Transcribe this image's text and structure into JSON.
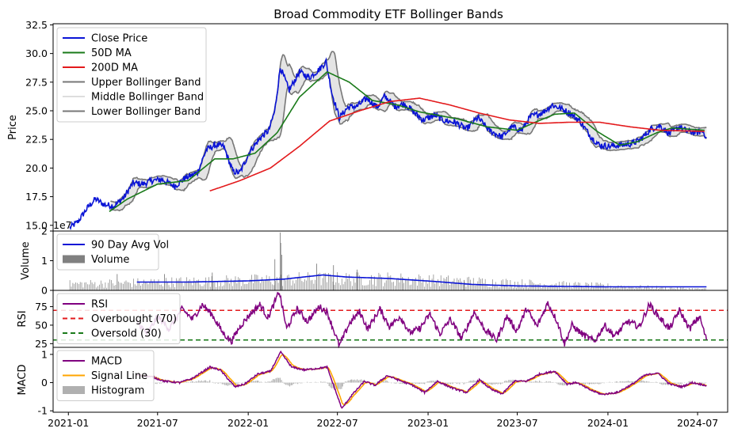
{
  "chart_data": {
    "type": "line",
    "title": "Broad Commodity ETF Bollinger Bands",
    "x_axis": {
      "tick_labels": [
        "2021-01",
        "2021-07",
        "2022-01",
        "2022-07",
        "2023-01",
        "2023-07",
        "2024-01",
        "2024-07"
      ],
      "range": [
        "2020-12-01",
        "2024-08-31"
      ]
    },
    "colors": {
      "close": "#0a14d6",
      "ma50": "#1a7a1a",
      "ma200": "#e31a1c",
      "band": "#777777",
      "band_fill": "#d9d9d9",
      "volume": "#808080",
      "vol_avg": "#0a14d6",
      "rsi": "#800080",
      "overbought": "#e31a1c",
      "oversold": "#1a7a1a",
      "macd": "#800080",
      "signal": "#ffa500",
      "histogram": "#b0b0b0"
    },
    "price_panel": {
      "ylabel": "Price",
      "ylim": [
        14.5,
        32.6
      ],
      "yticks": [
        "15.0",
        "17.5",
        "20.0",
        "22.5",
        "25.0",
        "27.5",
        "30.0",
        "32.5"
      ],
      "legend": [
        "Close Price",
        "50D MA",
        "200D MA",
        "Upper Bollinger Band",
        "Middle Bollinger Band",
        "Lower Bollinger Band"
      ],
      "legend_position": "upper-left",
      "close_keypoints": [
        [
          "2021-01-04",
          14.8
        ],
        [
          "2021-01-20",
          15.3
        ],
        [
          "2021-02-10",
          16.6
        ],
        [
          "2021-02-25",
          17.3
        ],
        [
          "2021-03-15",
          16.8
        ],
        [
          "2021-04-05",
          16.7
        ],
        [
          "2021-04-25",
          17.5
        ],
        [
          "2021-05-12",
          18.7
        ],
        [
          "2021-06-01",
          18.6
        ],
        [
          "2021-06-20",
          18.9
        ],
        [
          "2021-07-10",
          19.0
        ],
        [
          "2021-08-05",
          18.4
        ],
        [
          "2021-08-25",
          19.1
        ],
        [
          "2021-09-20",
          19.6
        ],
        [
          "2021-10-08",
          21.6
        ],
        [
          "2021-10-25",
          22.0
        ],
        [
          "2021-11-12",
          21.9
        ],
        [
          "2021-12-01",
          19.7
        ],
        [
          "2021-12-15",
          19.6
        ],
        [
          "2022-01-05",
          21.5
        ],
        [
          "2022-01-25",
          22.6
        ],
        [
          "2022-02-12",
          23.3
        ],
        [
          "2022-02-24",
          25.0
        ],
        [
          "2022-03-07",
          28.8
        ],
        [
          "2022-03-25",
          26.8
        ],
        [
          "2022-04-15",
          28.4
        ],
        [
          "2022-05-05",
          27.9
        ],
        [
          "2022-05-25",
          28.6
        ],
        [
          "2022-06-08",
          29.3
        ],
        [
          "2022-06-20",
          26.5
        ],
        [
          "2022-07-05",
          24.4
        ],
        [
          "2022-07-22",
          25.3
        ],
        [
          "2022-08-10",
          25.4
        ],
        [
          "2022-08-30",
          26.1
        ],
        [
          "2022-09-20",
          25.3
        ],
        [
          "2022-10-05",
          26.3
        ],
        [
          "2022-10-25",
          25.4
        ],
        [
          "2022-11-15",
          25.6
        ],
        [
          "2022-12-05",
          24.8
        ],
        [
          "2022-12-22",
          24.2
        ],
        [
          "2023-01-15",
          24.6
        ],
        [
          "2023-02-05",
          24.1
        ],
        [
          "2023-02-25",
          24.0
        ],
        [
          "2023-03-20",
          23.4
        ],
        [
          "2023-04-12",
          24.4
        ],
        [
          "2023-05-05",
          23.3
        ],
        [
          "2023-05-31",
          22.7
        ],
        [
          "2023-06-20",
          23.6
        ],
        [
          "2023-07-10",
          23.3
        ],
        [
          "2023-07-28",
          24.5
        ],
        [
          "2023-08-20",
          24.8
        ],
        [
          "2023-09-10",
          25.5
        ],
        [
          "2023-09-28",
          25.2
        ],
        [
          "2023-10-15",
          24.8
        ],
        [
          "2023-11-05",
          24.1
        ],
        [
          "2023-11-28",
          22.7
        ],
        [
          "2023-12-15",
          22.0
        ],
        [
          "2024-01-05",
          21.9
        ],
        [
          "2024-01-25",
          22.0
        ],
        [
          "2024-02-15",
          22.1
        ],
        [
          "2024-03-05",
          22.4
        ],
        [
          "2024-03-28",
          23.4
        ],
        [
          "2024-04-15",
          23.7
        ],
        [
          "2024-05-05",
          23.0
        ],
        [
          "2024-05-25",
          23.6
        ],
        [
          "2024-06-10",
          23.2
        ],
        [
          "2024-06-28",
          23.1
        ],
        [
          "2024-07-12",
          23.2
        ],
        [
          "2024-07-19",
          22.7
        ]
      ],
      "ma50_keypoints": [
        [
          "2021-03-25",
          16.2
        ],
        [
          "2021-05-01",
          17.3
        ],
        [
          "2021-07-01",
          18.6
        ],
        [
          "2021-09-01",
          18.9
        ],
        [
          "2021-10-25",
          20.8
        ],
        [
          "2021-12-01",
          20.8
        ],
        [
          "2022-01-15",
          21.3
        ],
        [
          "2022-03-01",
          23.1
        ],
        [
          "2022-04-15",
          26.2
        ],
        [
          "2022-06-10",
          28.4
        ],
        [
          "2022-07-25",
          27.5
        ],
        [
          "2022-09-10",
          25.9
        ],
        [
          "2022-11-01",
          25.5
        ],
        [
          "2022-12-15",
          24.9
        ],
        [
          "2023-03-01",
          24.3
        ],
        [
          "2023-05-01",
          23.6
        ],
        [
          "2023-07-01",
          23.3
        ],
        [
          "2023-08-01",
          23.9
        ],
        [
          "2023-09-15",
          24.7
        ],
        [
          "2023-10-25",
          24.8
        ],
        [
          "2023-12-10",
          23.2
        ],
        [
          "2024-01-25",
          22.0
        ],
        [
          "2024-03-01",
          22.3
        ],
        [
          "2024-04-10",
          23.1
        ],
        [
          "2024-05-10",
          23.5
        ],
        [
          "2024-07-15",
          23.3
        ]
      ],
      "ma200_keypoints": [
        [
          "2021-10-15",
          18.0
        ],
        [
          "2021-12-15",
          18.9
        ],
        [
          "2022-02-15",
          20.0
        ],
        [
          "2022-04-15",
          21.9
        ],
        [
          "2022-06-15",
          24.1
        ],
        [
          "2022-08-15",
          25.0
        ],
        [
          "2022-10-15",
          25.8
        ],
        [
          "2022-12-15",
          26.1
        ],
        [
          "2023-02-15",
          25.5
        ],
        [
          "2023-04-15",
          24.8
        ],
        [
          "2023-06-15",
          24.2
        ],
        [
          "2023-08-15",
          23.9
        ],
        [
          "2023-10-15",
          24.0
        ],
        [
          "2023-12-15",
          24.0
        ],
        [
          "2024-02-15",
          23.6
        ],
        [
          "2024-04-15",
          23.3
        ],
        [
          "2024-07-15",
          23.2
        ]
      ]
    },
    "volume_panel": {
      "ylabel": "Volume",
      "offset_label": "1e7",
      "ylim": [
        0,
        2.0
      ],
      "yticks": [
        "0",
        "1",
        "2"
      ],
      "legend": [
        "90 Day Avg Vol",
        "Volume"
      ],
      "legend_position": "upper-left",
      "avg_keypoints": [
        [
          "2021-05-20",
          0.28
        ],
        [
          "2021-09-01",
          0.28
        ],
        [
          "2022-01-01",
          0.32
        ],
        [
          "2022-03-15",
          0.38
        ],
        [
          "2022-06-01",
          0.52
        ],
        [
          "2022-07-20",
          0.45
        ],
        [
          "2022-10-15",
          0.4
        ],
        [
          "2023-01-15",
          0.3
        ],
        [
          "2023-04-01",
          0.2
        ],
        [
          "2023-07-01",
          0.15
        ],
        [
          "2024-01-01",
          0.12
        ],
        [
          "2024-07-19",
          0.12
        ]
      ],
      "spikes": [
        [
          "2022-03-07",
          1.95
        ],
        [
          "2022-03-08",
          1.6
        ],
        [
          "2022-03-10",
          1.2
        ],
        [
          "2022-02-24",
          1.05
        ],
        [
          "2022-05-20",
          0.9
        ],
        [
          "2022-06-23",
          0.85
        ],
        [
          "2021-10-20",
          0.6
        ],
        [
          "2021-07-15",
          0.55
        ],
        [
          "2021-04-10",
          0.55
        ],
        [
          "2022-08-10",
          0.7
        ],
        [
          "2022-11-10",
          0.45
        ],
        [
          "2023-03-15",
          0.35
        ]
      ]
    },
    "rsi_panel": {
      "ylabel": "RSI",
      "ylim": [
        20,
        97
      ],
      "yticks": [
        "25",
        "50",
        "75"
      ],
      "overbought": 70,
      "oversold": 30,
      "legend": [
        "RSI",
        "Overbought (70)",
        "Oversold (30)"
      ],
      "legend_position": "upper-left",
      "keypoints": [
        [
          "2021-05-20",
          55
        ],
        [
          "2021-06-10",
          38
        ],
        [
          "2021-07-01",
          62
        ],
        [
          "2021-07-25",
          45
        ],
        [
          "2021-08-20",
          72
        ],
        [
          "2021-09-10",
          58
        ],
        [
          "2021-09-30",
          78
        ],
        [
          "2021-10-20",
          64
        ],
        [
          "2021-11-10",
          40
        ],
        [
          "2021-11-28",
          28
        ],
        [
          "2021-12-15",
          48
        ],
        [
          "2022-01-05",
          65
        ],
        [
          "2022-01-25",
          78
        ],
        [
          "2022-02-10",
          60
        ],
        [
          "2022-03-05",
          95
        ],
        [
          "2022-03-20",
          45
        ],
        [
          "2022-04-10",
          72
        ],
        [
          "2022-05-01",
          55
        ],
        [
          "2022-05-25",
          75
        ],
        [
          "2022-06-10",
          68
        ],
        [
          "2022-07-05",
          22
        ],
        [
          "2022-07-25",
          52
        ],
        [
          "2022-08-15",
          68
        ],
        [
          "2022-09-01",
          45
        ],
        [
          "2022-09-25",
          72
        ],
        [
          "2022-10-15",
          48
        ],
        [
          "2022-11-05",
          62
        ],
        [
          "2022-11-25",
          40
        ],
        [
          "2022-12-15",
          45
        ],
        [
          "2023-01-05",
          65
        ],
        [
          "2023-01-25",
          38
        ],
        [
          "2023-02-15",
          58
        ],
        [
          "2023-03-10",
          32
        ],
        [
          "2023-04-05",
          68
        ],
        [
          "2023-04-25",
          45
        ],
        [
          "2023-05-20",
          30
        ],
        [
          "2023-06-10",
          62
        ],
        [
          "2023-06-30",
          42
        ],
        [
          "2023-07-20",
          72
        ],
        [
          "2023-08-10",
          48
        ],
        [
          "2023-09-01",
          80
        ],
        [
          "2023-09-20",
          55
        ],
        [
          "2023-10-05",
          25
        ],
        [
          "2023-10-20",
          50
        ],
        [
          "2023-11-10",
          38
        ],
        [
          "2023-12-05",
          28
        ],
        [
          "2023-12-25",
          50
        ],
        [
          "2024-01-15",
          35
        ],
        [
          "2024-02-10",
          55
        ],
        [
          "2024-03-05",
          48
        ],
        [
          "2024-03-25",
          78
        ],
        [
          "2024-04-15",
          60
        ],
        [
          "2024-05-05",
          45
        ],
        [
          "2024-05-25",
          70
        ],
        [
          "2024-06-15",
          45
        ],
        [
          "2024-07-05",
          62
        ],
        [
          "2024-07-19",
          30
        ]
      ]
    },
    "macd_panel": {
      "ylabel": "MACD",
      "ylim": [
        -1.05,
        1.25
      ],
      "yticks": [
        "-1",
        "0",
        "1"
      ],
      "legend": [
        "MACD",
        "Signal Line",
        "Histogram"
      ],
      "legend_position": "upper-left",
      "keypoints": [
        [
          "2021-05-20",
          0.28
        ],
        [
          "2021-06-20",
          0.2
        ],
        [
          "2021-07-15",
          0.05
        ],
        [
          "2021-08-15",
          0.0
        ],
        [
          "2021-09-10",
          0.15
        ],
        [
          "2021-10-15",
          0.55
        ],
        [
          "2021-11-05",
          0.45
        ],
        [
          "2021-12-05",
          -0.15
        ],
        [
          "2021-12-25",
          -0.05
        ],
        [
          "2022-01-20",
          0.3
        ],
        [
          "2022-02-15",
          0.4
        ],
        [
          "2022-03-08",
          1.08
        ],
        [
          "2022-03-30",
          0.55
        ],
        [
          "2022-04-25",
          0.45
        ],
        [
          "2022-05-20",
          0.5
        ],
        [
          "2022-06-10",
          0.55
        ],
        [
          "2022-07-10",
          -0.92
        ],
        [
          "2022-07-30",
          -0.45
        ],
        [
          "2022-08-25",
          0.05
        ],
        [
          "2022-09-15",
          -0.1
        ],
        [
          "2022-10-10",
          0.25
        ],
        [
          "2022-11-01",
          0.1
        ],
        [
          "2022-12-01",
          -0.1
        ],
        [
          "2022-12-25",
          -0.35
        ],
        [
          "2023-01-20",
          0.05
        ],
        [
          "2023-02-20",
          -0.2
        ],
        [
          "2023-03-20",
          -0.35
        ],
        [
          "2023-04-15",
          0.1
        ],
        [
          "2023-05-10",
          -0.25
        ],
        [
          "2023-06-01",
          -0.4
        ],
        [
          "2023-06-25",
          0.05
        ],
        [
          "2023-07-20",
          0.05
        ],
        [
          "2023-08-15",
          0.3
        ],
        [
          "2023-09-15",
          0.4
        ],
        [
          "2023-10-10",
          -0.05
        ],
        [
          "2023-10-30",
          0.0
        ],
        [
          "2023-11-25",
          -0.25
        ],
        [
          "2023-12-20",
          -0.42
        ],
        [
          "2024-01-20",
          -0.35
        ],
        [
          "2024-02-20",
          -0.05
        ],
        [
          "2024-03-15",
          0.25
        ],
        [
          "2024-04-10",
          0.35
        ],
        [
          "2024-05-05",
          -0.05
        ],
        [
          "2024-05-30",
          -0.15
        ],
        [
          "2024-06-20",
          0.0
        ],
        [
          "2024-07-19",
          -0.1
        ]
      ]
    }
  }
}
